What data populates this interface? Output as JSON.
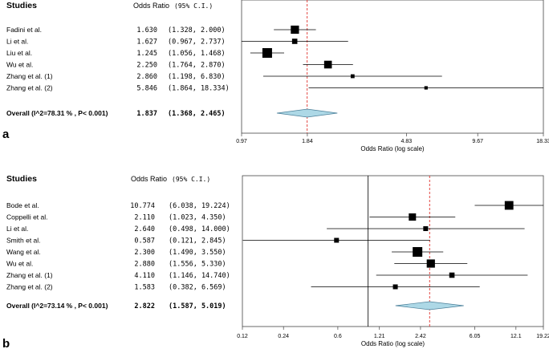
{
  "chart_data": [
    {
      "type": "forest",
      "panel": "a",
      "header": {
        "studies": "Studies",
        "or_label": "Odds Ratio",
        "ci_label": "(95% C.I.)"
      },
      "xlabel": "Odds Ratio (log scale)",
      "xscale": "log",
      "xlim": [
        0.97,
        18.33
      ],
      "ticks": [
        0.97,
        1.84,
        4.83,
        9.67,
        18.33
      ],
      "tick_labels": [
        "0.97",
        "1.84",
        "4.83",
        "9.67",
        "18.33"
      ],
      "reference_line": 1.837,
      "studies": [
        {
          "name": "Fadini et al.",
          "or": 1.63,
          "lo": 1.328,
          "hi": 2.0,
          "or_text": "1.630",
          "ci_text": "(1.328,  2.000)",
          "weight": 0.85
        },
        {
          "name": "Li et al.",
          "or": 1.627,
          "lo": 0.967,
          "hi": 2.737,
          "or_text": "1.627",
          "ci_text": "(0.967,  2.737)",
          "weight": 0.55
        },
        {
          "name": "Liu et al.",
          "or": 1.245,
          "lo": 1.056,
          "hi": 1.468,
          "or_text": "1.245",
          "ci_text": "(1.056,  1.468)",
          "weight": 1.0
        },
        {
          "name": "Wu et al.",
          "or": 2.25,
          "lo": 1.764,
          "hi": 2.87,
          "or_text": "2.250",
          "ci_text": "(1.764,  2.870)",
          "weight": 0.8
        },
        {
          "name": "Zhang et al. (1)",
          "or": 2.86,
          "lo": 1.198,
          "hi": 6.83,
          "or_text": "2.860",
          "ci_text": "(1.198,  6.830)",
          "weight": 0.4
        },
        {
          "name": "Zhang et al. (2)",
          "or": 5.846,
          "lo": 1.864,
          "hi": 18.334,
          "or_text": "5.846",
          "ci_text": "(1.864, 18.334)",
          "weight": 0.35
        }
      ],
      "overall": {
        "name": "Overall (I^2=78.31 % , P< 0.001)",
        "or": 1.837,
        "lo": 1.368,
        "hi": 2.465,
        "or_text": "1.837",
        "ci_text": "(1.368,  2.465)"
      }
    },
    {
      "type": "forest",
      "panel": "b",
      "header": {
        "studies": "Studies",
        "or_label": "Odds Ratio",
        "ci_label": "(95% C.I.)"
      },
      "xlabel": "Odds Ratio (log scale)",
      "xscale": "log",
      "xlim": [
        0.12,
        19.22
      ],
      "ticks": [
        0.12,
        0.24,
        0.6,
        1.21,
        2.42,
        6.05,
        12.1,
        19.22
      ],
      "tick_labels": [
        "0.12",
        "0.24",
        "0.6",
        "1.21",
        "2.42",
        "6.05",
        "12.1",
        "19.22"
      ],
      "null_line": 1.0,
      "reference_line": 2.822,
      "studies": [
        {
          "name": "Bode et al.",
          "or": 10.774,
          "lo": 6.038,
          "hi": 19.224,
          "or_text": "10.774",
          "ci_text": "(6.038, 19.224)",
          "weight": 0.9
        },
        {
          "name": "Coppelli et al.",
          "or": 2.11,
          "lo": 1.023,
          "hi": 4.35,
          "or_text": "2.110",
          "ci_text": "(1.023,  4.350)",
          "weight": 0.75
        },
        {
          "name": "Li et al.",
          "or": 2.64,
          "lo": 0.498,
          "hi": 14.0,
          "or_text": "2.640",
          "ci_text": "(0.498, 14.000)",
          "weight": 0.5
        },
        {
          "name": "Smith et al.",
          "or": 0.587,
          "lo": 0.121,
          "hi": 2.845,
          "or_text": "0.587",
          "ci_text": "(0.121,  2.845)",
          "weight": 0.5
        },
        {
          "name": "Wang et al.",
          "or": 2.3,
          "lo": 1.49,
          "hi": 3.55,
          "or_text": "2.300",
          "ci_text": "(1.490,  3.550)",
          "weight": 1.0
        },
        {
          "name": "Wu et al.",
          "or": 2.88,
          "lo": 1.556,
          "hi": 5.33,
          "or_text": "2.880",
          "ci_text": "(1.556,  5.330)",
          "weight": 0.85
        },
        {
          "name": "Zhang et al. (1)",
          "or": 4.11,
          "lo": 1.146,
          "hi": 14.74,
          "or_text": "4.110",
          "ci_text": "(1.146, 14.740)",
          "weight": 0.55
        },
        {
          "name": "Zhang et al. (2)",
          "or": 1.583,
          "lo": 0.382,
          "hi": 6.569,
          "or_text": "1.583",
          "ci_text": "(0.382,  6.569)",
          "weight": 0.5
        }
      ],
      "overall": {
        "name": "Overall (I^2=73.14 % , P< 0.001)",
        "or": 2.822,
        "lo": 1.587,
        "hi": 5.019,
        "or_text": "2.822",
        "ci_text": "(1.587,  5.019)"
      }
    }
  ],
  "colors": {
    "diamond_fill": "#add8e6",
    "diamond_stroke": "#4a7f99",
    "ref_line": "#e0312b",
    "ink": "#000000",
    "axis": "#555555"
  }
}
